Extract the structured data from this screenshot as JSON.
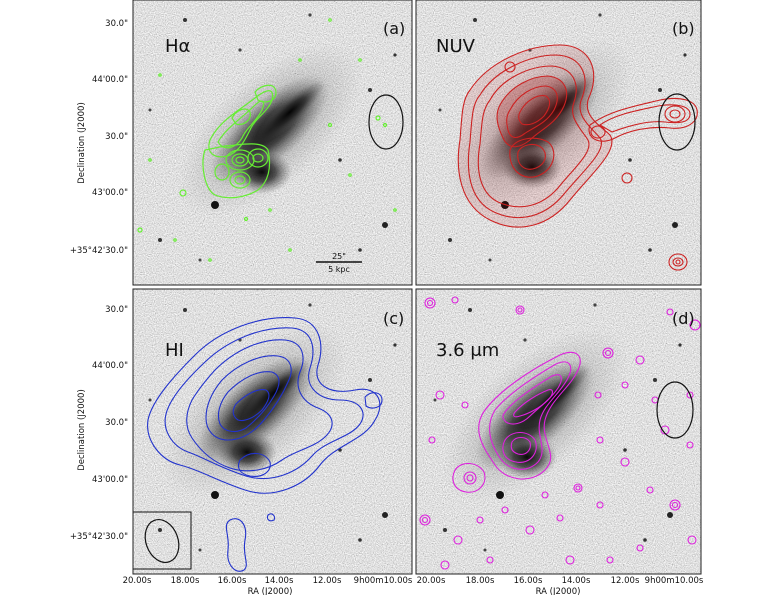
{
  "figure": {
    "ylabel": "Declination (J2000)",
    "xlabel": "RA (J2000)",
    "dec_ticks": [
      "30.0\"",
      "44'00.0\"",
      "30.0\"",
      "43'00.0\"",
      "+35°42'30.0\""
    ],
    "ra_ticks": [
      "20.00s",
      "18.00s",
      "16.00s",
      "14.00s",
      "12.00s",
      "9h00m10.00s"
    ],
    "scale_bar": {
      "arcsec_label": "25\"",
      "kpc_label": "5 kpc"
    }
  },
  "panels": [
    {
      "tag": "(a)",
      "band": "Hα",
      "contour_color": "#66ee33"
    },
    {
      "tag": "(b)",
      "band": "NUV",
      "contour_color": "#cc2222"
    },
    {
      "tag": "(c)",
      "band": "HI",
      "contour_color": "#2233cc"
    },
    {
      "tag": "(d)",
      "band": "3.6 μm",
      "contour_color": "#dd22dd"
    }
  ]
}
